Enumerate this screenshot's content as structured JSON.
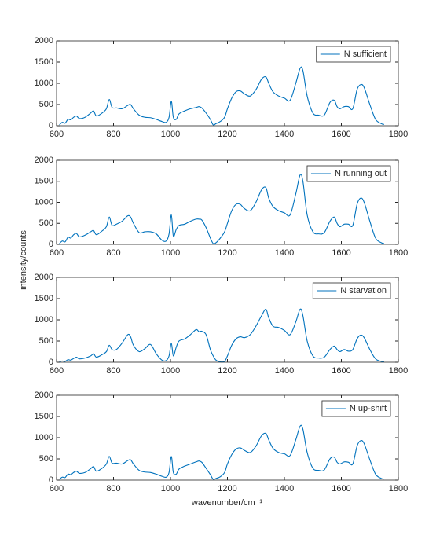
{
  "xlabel": "wavenumber/cm⁻¹",
  "ylabel": "intensity/counts",
  "chart_data": [
    {
      "type": "line",
      "xlim": [
        600,
        1800
      ],
      "ylim": [
        0,
        2000
      ],
      "xticks": [
        600,
        800,
        1000,
        1200,
        1400,
        1600,
        1800
      ],
      "yticks": [
        0,
        500,
        1000,
        1500,
        2000
      ],
      "legend": "northeast",
      "x": [
        610,
        620,
        630,
        640,
        650,
        660,
        670,
        680,
        700,
        720,
        730,
        740,
        760,
        775,
        785,
        795,
        810,
        830,
        850,
        860,
        870,
        890,
        910,
        930,
        950,
        970,
        985,
        995,
        1003,
        1010,
        1020,
        1030,
        1050,
        1070,
        1090,
        1100,
        1110,
        1125,
        1140,
        1150,
        1160,
        1175,
        1190,
        1200,
        1215,
        1230,
        1245,
        1260,
        1280,
        1300,
        1320,
        1335,
        1345,
        1360,
        1380,
        1400,
        1420,
        1440,
        1455,
        1465,
        1480,
        1500,
        1520,
        1540,
        1560,
        1575,
        1585,
        1595,
        1610,
        1625,
        1640,
        1655,
        1668,
        1680,
        1700,
        1720,
        1740,
        1750
      ],
      "series": [
        {
          "name": "N sufficient",
          "color": "#0072bd",
          "values": [
            20,
            80,
            60,
            150,
            140,
            200,
            230,
            170,
            200,
            300,
            350,
            230,
            300,
            400,
            620,
            430,
            420,
            400,
            480,
            500,
            400,
            250,
            200,
            190,
            150,
            100,
            80,
            200,
            580,
            200,
            150,
            280,
            350,
            400,
            430,
            450,
            420,
            300,
            150,
            20,
            50,
            100,
            200,
            400,
            650,
            800,
            820,
            750,
            700,
            850,
            1100,
            1150,
            1000,
            800,
            700,
            650,
            600,
            1000,
            1350,
            1300,
            700,
            300,
            250,
            250,
            550,
            600,
            450,
            400,
            450,
            450,
            400,
            850,
            970,
            900,
            500,
            150,
            50,
            30
          ]
        }
      ]
    },
    {
      "type": "line",
      "xlim": [
        600,
        1800
      ],
      "ylim": [
        0,
        2000
      ],
      "xticks": [
        600,
        800,
        1000,
        1200,
        1400,
        1600,
        1800
      ],
      "yticks": [
        0,
        500,
        1000,
        1500,
        2000
      ],
      "legend": "northeast",
      "x": [
        610,
        620,
        630,
        640,
        650,
        660,
        670,
        680,
        700,
        720,
        730,
        740,
        760,
        775,
        785,
        795,
        810,
        830,
        850,
        860,
        870,
        890,
        910,
        930,
        950,
        970,
        985,
        995,
        1003,
        1010,
        1020,
        1030,
        1050,
        1070,
        1090,
        1100,
        1110,
        1125,
        1140,
        1150,
        1160,
        1175,
        1190,
        1200,
        1215,
        1230,
        1245,
        1260,
        1280,
        1300,
        1320,
        1335,
        1345,
        1360,
        1380,
        1400,
        1420,
        1440,
        1455,
        1465,
        1480,
        1500,
        1520,
        1540,
        1560,
        1575,
        1585,
        1595,
        1610,
        1625,
        1640,
        1655,
        1668,
        1680,
        1700,
        1720,
        1740,
        1750
      ],
      "series": [
        {
          "name": "N running out",
          "color": "#0072bd",
          "values": [
            20,
            80,
            60,
            170,
            150,
            230,
            260,
            180,
            220,
            300,
            330,
            230,
            320,
            420,
            650,
            450,
            480,
            550,
            680,
            650,
            500,
            280,
            300,
            300,
            250,
            100,
            80,
            250,
            700,
            200,
            350,
            450,
            480,
            550,
            600,
            600,
            580,
            400,
            150,
            20,
            40,
            150,
            300,
            500,
            800,
            950,
            950,
            850,
            800,
            1000,
            1300,
            1350,
            1100,
            900,
            800,
            750,
            700,
            1200,
            1650,
            1500,
            700,
            300,
            250,
            280,
            550,
            650,
            500,
            420,
            480,
            480,
            450,
            950,
            1100,
            1000,
            550,
            150,
            40,
            20
          ]
        }
      ]
    },
    {
      "type": "line",
      "xlim": [
        600,
        1800
      ],
      "ylim": [
        0,
        2000
      ],
      "xticks": [
        600,
        800,
        1000,
        1200,
        1400,
        1600,
        1800
      ],
      "yticks": [
        0,
        500,
        1000,
        1500,
        2000
      ],
      "legend": "northeast",
      "x": [
        610,
        620,
        630,
        640,
        650,
        660,
        670,
        680,
        700,
        720,
        730,
        740,
        760,
        775,
        785,
        795,
        810,
        830,
        850,
        860,
        870,
        890,
        910,
        930,
        950,
        970,
        985,
        995,
        1003,
        1010,
        1020,
        1030,
        1050,
        1070,
        1090,
        1100,
        1110,
        1125,
        1140,
        1150,
        1160,
        1175,
        1190,
        1200,
        1215,
        1230,
        1245,
        1260,
        1280,
        1300,
        1320,
        1335,
        1345,
        1360,
        1380,
        1400,
        1420,
        1440,
        1455,
        1465,
        1480,
        1500,
        1520,
        1540,
        1560,
        1575,
        1585,
        1595,
        1610,
        1625,
        1640,
        1655,
        1668,
        1680,
        1700,
        1720,
        1740,
        1750
      ],
      "series": [
        {
          "name": "N starvation",
          "color": "#0072bd",
          "values": [
            10,
            30,
            20,
            60,
            50,
            90,
            120,
            80,
            100,
            150,
            200,
            120,
            180,
            250,
            400,
            300,
            300,
            450,
            650,
            600,
            400,
            250,
            320,
            420,
            200,
            50,
            40,
            150,
            450,
            150,
            350,
            500,
            550,
            650,
            770,
            720,
            730,
            650,
            300,
            150,
            50,
            10,
            20,
            150,
            400,
            550,
            600,
            580,
            650,
            850,
            1100,
            1250,
            1050,
            850,
            820,
            750,
            650,
            950,
            1250,
            1100,
            500,
            150,
            100,
            120,
            300,
            380,
            300,
            250,
            300,
            260,
            300,
            550,
            640,
            580,
            300,
            80,
            20,
            10
          ]
        }
      ]
    },
    {
      "type": "line",
      "xlim": [
        600,
        1800
      ],
      "ylim": [
        0,
        2000
      ],
      "xticks": [
        600,
        800,
        1000,
        1200,
        1400,
        1600,
        1800
      ],
      "yticks": [
        0,
        500,
        1000,
        1500,
        2000
      ],
      "legend": "northeast",
      "x": [
        610,
        620,
        630,
        640,
        650,
        660,
        670,
        680,
        700,
        720,
        730,
        740,
        760,
        775,
        785,
        795,
        810,
        830,
        850,
        860,
        870,
        890,
        910,
        930,
        950,
        970,
        985,
        995,
        1003,
        1010,
        1020,
        1030,
        1050,
        1070,
        1090,
        1100,
        1110,
        1125,
        1140,
        1150,
        1160,
        1175,
        1190,
        1200,
        1215,
        1230,
        1245,
        1260,
        1280,
        1300,
        1320,
        1335,
        1345,
        1360,
        1380,
        1400,
        1420,
        1440,
        1455,
        1465,
        1480,
        1500,
        1520,
        1540,
        1560,
        1575,
        1585,
        1595,
        1610,
        1625,
        1640,
        1655,
        1668,
        1680,
        1700,
        1720,
        1740,
        1750
      ],
      "series": [
        {
          "name": "N up-shift",
          "color": "#0072bd",
          "values": [
            20,
            70,
            60,
            140,
            130,
            180,
            210,
            160,
            180,
            270,
            320,
            210,
            280,
            380,
            560,
            400,
            400,
            380,
            460,
            480,
            380,
            230,
            190,
            180,
            140,
            90,
            70,
            180,
            560,
            180,
            140,
            260,
            330,
            380,
            430,
            450,
            420,
            280,
            130,
            20,
            40,
            80,
            180,
            380,
            600,
            730,
            760,
            700,
            650,
            800,
            1050,
            1100,
            950,
            750,
            650,
            620,
            580,
            950,
            1270,
            1200,
            650,
            280,
            230,
            240,
            500,
            540,
            420,
            380,
            430,
            420,
            380,
            800,
            930,
            860,
            480,
            140,
            40,
            25
          ]
        }
      ]
    }
  ]
}
